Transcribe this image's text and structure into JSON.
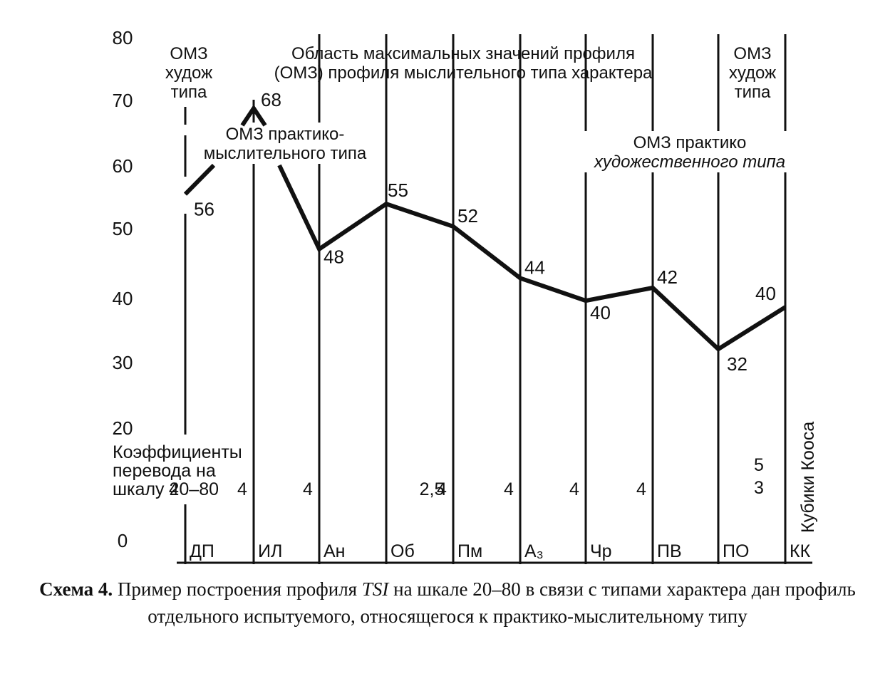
{
  "chart_data": {
    "type": "line",
    "y_ticks": [
      "80",
      "70",
      "60",
      "50",
      "40",
      "30",
      "20",
      "0"
    ],
    "ylim": [
      0,
      80
    ],
    "categories": [
      "ДП",
      "ИЛ",
      "Ан",
      "Об",
      "Пм",
      "А₃",
      "Чр",
      "ПВ",
      "ПО",
      "КК"
    ],
    "values": [
      56,
      68,
      48,
      55,
      52,
      44,
      40,
      42,
      32,
      40
    ],
    "value_labels": [
      "56",
      "68",
      "48",
      "55",
      "52",
      "44",
      "40",
      "42",
      "32",
      "40"
    ],
    "y_positions": [
      56,
      69,
      47.5,
      54.5,
      51,
      43,
      39.5,
      41.5,
      32,
      38.5
    ],
    "coefficients": [
      "4",
      "4",
      "4",
      "2,5",
      "4",
      "4",
      "4",
      "4",
      "",
      ""
    ],
    "kk_coefficients": [
      "5",
      "3"
    ],
    "coef_label_lines": [
      "Коэффициенты",
      "перевода на",
      "шкалу 20–80"
    ],
    "kk_name": "Кубики Кооса",
    "annotations": {
      "omz_art_left": [
        "ОМЗ",
        "худож",
        "типа"
      ],
      "omz_max": [
        "Область максимальных значений профиля",
        "(ОМЗ) профиля мыслительного типа характера"
      ],
      "omz_art_right": [
        "ОМЗ",
        "худож",
        "типа"
      ],
      "omz_practical_thinking": [
        "ОМЗ практико-",
        "мыслительного типа"
      ],
      "omz_practical_art": [
        "ОМЗ практико",
        "художественного типа"
      ]
    },
    "grid": false
  },
  "caption": {
    "label": "Схема 4.",
    "text_before": " Пример построения профиля ",
    "text_italic": "TSI",
    "text_after": " на шкале 20–80 в связи с типами характера дан профиль отдельного испытуемого, относящегося к практико-мыслительному типу"
  }
}
